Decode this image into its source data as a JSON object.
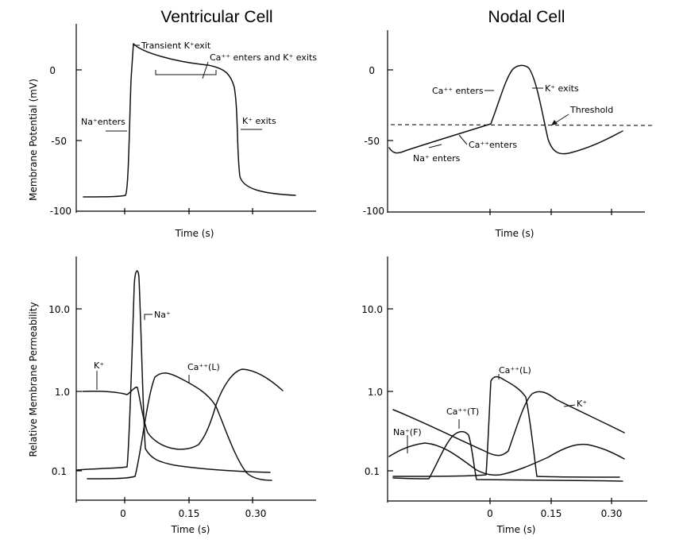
{
  "titles": {
    "left": "Ventricular Cell",
    "right": "Nodal Cell"
  },
  "chart_data": [
    {
      "panel": "top-left",
      "type": "line",
      "ylabel": "Membrane Potential (mV)",
      "xlabel": "Time (s)",
      "yticks": [
        "0",
        "-50",
        "-100"
      ],
      "ylim": [
        -100,
        30
      ],
      "series": [
        {
          "x": [
            -0.3,
            -0.2,
            -0.12,
            -0.08,
            -0.06,
            -0.05,
            -0.03,
            0.0,
            0.05,
            0.1,
            0.15,
            0.2,
            0.23,
            0.25,
            0.26,
            0.27,
            0.28,
            0.3,
            0.35,
            0.45
          ],
          "values": [
            -90,
            -90,
            -89.5,
            -80,
            -20,
            18,
            14,
            11,
            8,
            6,
            4,
            0,
            -5,
            -30,
            -70,
            -82,
            -85,
            -87,
            -89,
            -90
          ]
        }
      ],
      "annotations": [
        "Transient K⁺exit",
        "Ca⁺⁺ enters and K⁺ exits",
        "Na⁺enters",
        "K⁺ exits"
      ]
    },
    {
      "panel": "top-right",
      "type": "line",
      "xlabel": "Time (s)",
      "yticks": [
        "0",
        "-50",
        "-100"
      ],
      "ylim": [
        -100,
        30
      ],
      "threshold": -40,
      "series": [
        {
          "x": [
            -0.35,
            -0.3,
            -0.2,
            -0.1,
            -0.02,
            0.02,
            0.06,
            0.08,
            0.1,
            0.13,
            0.16,
            0.2,
            0.25,
            0.3,
            0.35
          ],
          "values": [
            -57,
            -58,
            -50,
            -43,
            -38,
            -12,
            3,
            1,
            -14,
            -45,
            -58,
            -57,
            -52,
            -48,
            -44
          ]
        }
      ],
      "annotations": [
        "Ca⁺⁺ enters",
        "K⁺ exits",
        "Threshold",
        "Ca⁺⁺enters",
        "Na⁺ enters"
      ]
    },
    {
      "panel": "bottom-left",
      "type": "line",
      "ylabel": "Relative Membrane Permeability",
      "xlabel": "Time (s)",
      "yscale": "log",
      "yticks": [
        "10.0",
        "1.0",
        "0.1"
      ],
      "xticks": [
        "0",
        "0.15",
        "0.30"
      ],
      "series": [
        {
          "name": "K⁺",
          "x": [
            -0.12,
            -0.06,
            0.0,
            0.02,
            0.03,
            0.05,
            0.08,
            0.12,
            0.18,
            0.22,
            0.25,
            0.28,
            0.32,
            0.36
          ],
          "values": [
            1.0,
            1.0,
            0.92,
            1.0,
            1.1,
            0.5,
            0.3,
            0.22,
            0.2,
            0.25,
            0.6,
            1.6,
            1.7,
            1.2
          ]
        },
        {
          "name": "Na⁺",
          "x": [
            -0.12,
            0.0,
            0.01,
            0.02,
            0.025,
            0.03,
            0.04,
            0.06,
            0.1,
            0.2,
            0.3,
            0.35
          ],
          "values": [
            0.095,
            0.1,
            0.5,
            20,
            35,
            30,
            1.2,
            0.18,
            0.13,
            0.11,
            0.1,
            0.095
          ]
        },
        {
          "name": "Ca⁺⁺(L)",
          "x": [
            -0.06,
            0.0,
            0.03,
            0.05,
            0.07,
            0.09,
            0.12,
            0.15,
            0.18,
            0.2,
            0.22,
            0.25,
            0.28
          ],
          "values": [
            0.08,
            0.082,
            0.1,
            0.5,
            1.5,
            1.7,
            1.5,
            1.3,
            1.0,
            0.75,
            0.4,
            0.12,
            0.075
          ]
        }
      ]
    },
    {
      "panel": "bottom-right",
      "type": "line",
      "xlabel": "Time (s)",
      "yscale": "log",
      "yticks": [
        "10.0",
        "1.0",
        "0.1"
      ],
      "xticks": [
        "0",
        "0.15",
        "0.30"
      ],
      "series": [
        {
          "name": "K⁺",
          "x": [
            -0.35,
            -0.2,
            -0.1,
            0.0,
            0.05,
            0.1,
            0.15,
            0.2,
            0.25,
            0.3,
            0.35
          ],
          "values": [
            0.6,
            0.3,
            0.2,
            0.15,
            0.4,
            1.0,
            0.9,
            0.6,
            0.45,
            0.38,
            0.32
          ]
        },
        {
          "name": "Na⁺(F)",
          "x": [
            -0.35,
            -0.3,
            -0.2,
            -0.1,
            -0.02,
            0.0,
            0.05,
            0.1,
            0.15,
            0.2,
            0.25,
            0.3,
            0.35
          ],
          "values": [
            0.16,
            0.2,
            0.2,
            0.12,
            0.085,
            0.085,
            0.09,
            0.1,
            0.15,
            0.2,
            0.22,
            0.2,
            0.17
          ]
        },
        {
          "name": "Ca⁺⁺(T)",
          "x": [
            -0.35,
            -0.2,
            -0.12,
            -0.06,
            -0.04,
            -0.02,
            -0.01,
            0.05,
            0.2,
            0.35
          ],
          "values": [
            0.085,
            0.082,
            0.2,
            0.3,
            0.3,
            0.15,
            0.082,
            0.08,
            0.078,
            0.075
          ]
        },
        {
          "name": "Ca⁺⁺(L)",
          "x": [
            -0.35,
            -0.02,
            -0.01,
            0.005,
            0.02,
            0.05,
            0.08,
            0.1,
            0.11,
            0.2,
            0.35
          ],
          "values": [
            0.085,
            0.09,
            0.1,
            1.2,
            1.5,
            1.3,
            0.6,
            0.2,
            0.085,
            0.085,
            0.085
          ]
        }
      ]
    }
  ]
}
